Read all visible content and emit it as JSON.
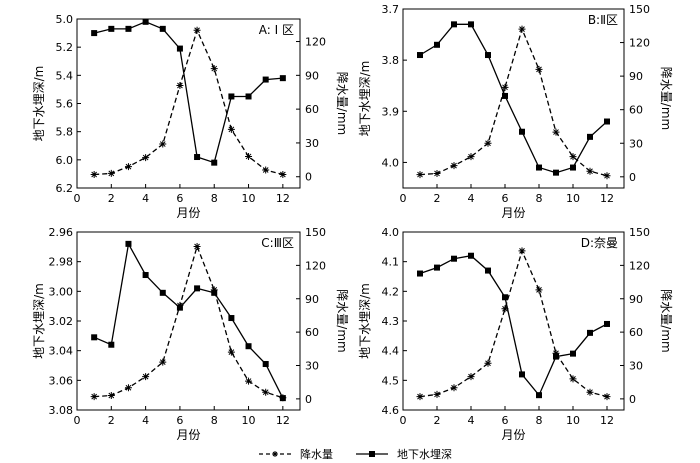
{
  "chart_data": [
    {
      "type": "line",
      "panel_label": "A: Ⅰ 区",
      "xlabel": "月份",
      "ylabel_left": "地下水埋深/m",
      "ylabel_right": "降水量/mm",
      "x": [
        1,
        2,
        3,
        4,
        5,
        6,
        7,
        8,
        9,
        10,
        11,
        12
      ],
      "x_ticks": [
        0,
        2,
        4,
        6,
        8,
        10,
        12
      ],
      "xlim": [
        0,
        13
      ],
      "left_axis": {
        "lim": [
          5.0,
          6.2
        ],
        "inverted": true,
        "ticks": [
          5.0,
          5.2,
          5.4,
          5.6,
          5.8,
          6.0,
          6.2
        ],
        "tick_labels": [
          "5.0",
          "5.2",
          "5.4",
          "5.6",
          "5.8",
          "6.0",
          "6.2"
        ]
      },
      "right_axis": {
        "lim": [
          -10,
          140
        ],
        "ticks": [
          0,
          30,
          60,
          90,
          120
        ],
        "tick_labels": [
          "0",
          "30",
          "60",
          "90",
          "120"
        ]
      },
      "series": [
        {
          "name": "降水量",
          "axis": "right",
          "style": "dashed",
          "marker": "star",
          "values": [
            2,
            3,
            9,
            17,
            29,
            81,
            130,
            96,
            42,
            18,
            6,
            2
          ]
        },
        {
          "name": "地下水埋深",
          "axis": "left",
          "style": "solid",
          "marker": "square",
          "values": [
            5.1,
            5.07,
            5.07,
            5.02,
            5.07,
            5.21,
            5.98,
            6.02,
            5.55,
            5.55,
            5.43,
            5.42
          ]
        }
      ]
    },
    {
      "type": "line",
      "panel_label": "B:Ⅱ区",
      "xlabel": "月份",
      "ylabel_left": "地下水埋深/m",
      "ylabel_right": "降水量/mm",
      "x": [
        1,
        2,
        3,
        4,
        5,
        6,
        7,
        8,
        9,
        10,
        11,
        12
      ],
      "x_ticks": [
        0,
        2,
        4,
        6,
        8,
        10,
        12
      ],
      "xlim": [
        0,
        13
      ],
      "left_axis": {
        "lim": [
          3.7,
          4.05
        ],
        "inverted": true,
        "ticks": [
          3.7,
          3.8,
          3.9,
          4.0
        ],
        "tick_labels": [
          "3.7",
          "3.8",
          "3.9",
          "4.0"
        ]
      },
      "right_axis": {
        "lim": [
          -10,
          150
        ],
        "ticks": [
          0,
          30,
          60,
          90,
          120,
          150
        ],
        "tick_labels": [
          "0",
          "30",
          "60",
          "90",
          "120",
          "150"
        ]
      },
      "series": [
        {
          "name": "降水量",
          "axis": "right",
          "style": "dashed",
          "marker": "star",
          "values": [
            2,
            3,
            10,
            18,
            30,
            80,
            132,
            96,
            40,
            18,
            5,
            1
          ]
        },
        {
          "name": "地下水埋深",
          "axis": "left",
          "style": "solid",
          "marker": "square",
          "values": [
            3.79,
            3.77,
            3.73,
            3.73,
            3.79,
            3.87,
            3.94,
            4.01,
            4.02,
            4.01,
            3.95,
            3.92
          ]
        }
      ]
    },
    {
      "type": "line",
      "panel_label": "C:Ⅲ区",
      "xlabel": "月份",
      "ylabel_left": "地下水埋深/m",
      "ylabel_right": "降水量/mm",
      "x": [
        1,
        2,
        3,
        4,
        5,
        6,
        7,
        8,
        9,
        10,
        11,
        12
      ],
      "x_ticks": [
        0,
        2,
        4,
        6,
        8,
        10,
        12
      ],
      "xlim": [
        0,
        13
      ],
      "left_axis": {
        "lim": [
          2.96,
          3.08
        ],
        "inverted": true,
        "ticks": [
          2.96,
          2.98,
          3.0,
          3.02,
          3.04,
          3.06,
          3.08
        ],
        "tick_labels": [
          "2.96",
          "2.98",
          "3.00",
          "3.02",
          "3.04",
          "3.06",
          "3.08"
        ]
      },
      "right_axis": {
        "lim": [
          -10,
          150
        ],
        "ticks": [
          0,
          30,
          60,
          90,
          120,
          150
        ],
        "tick_labels": [
          "0",
          "30",
          "60",
          "90",
          "120",
          "150"
        ]
      },
      "series": [
        {
          "name": "降水量",
          "axis": "right",
          "style": "dashed",
          "marker": "star",
          "values": [
            2,
            3,
            10,
            20,
            33,
            84,
            137,
            98,
            42,
            16,
            6,
            1
          ]
        },
        {
          "name": "地下水埋深",
          "axis": "left",
          "style": "solid",
          "marker": "square",
          "values": [
            3.031,
            3.036,
            2.968,
            2.989,
            3.001,
            3.011,
            2.998,
            3.001,
            3.018,
            3.037,
            3.049,
            3.072
          ]
        }
      ]
    },
    {
      "type": "line",
      "panel_label": "D:奈曼",
      "xlabel": "月份",
      "ylabel_left": "地下水埋深/m",
      "ylabel_right": "降水量/mm",
      "x": [
        1,
        2,
        3,
        4,
        5,
        6,
        7,
        8,
        9,
        10,
        11,
        12
      ],
      "x_ticks": [
        0,
        2,
        4,
        6,
        8,
        10,
        12
      ],
      "xlim": [
        0,
        13
      ],
      "left_axis": {
        "lim": [
          4.0,
          4.6
        ],
        "inverted": true,
        "ticks": [
          4.0,
          4.1,
          4.2,
          4.3,
          4.4,
          4.5,
          4.6
        ],
        "tick_labels": [
          "4.0",
          "4.1",
          "4.2",
          "4.3",
          "4.4",
          "4.5",
          "4.6"
        ]
      },
      "right_axis": {
        "lim": [
          -10,
          150
        ],
        "ticks": [
          0,
          30,
          60,
          90,
          120,
          150
        ],
        "tick_labels": [
          "0",
          "30",
          "60",
          "90",
          "120",
          "150"
        ]
      },
      "series": [
        {
          "name": "降水量",
          "axis": "right",
          "style": "dashed",
          "marker": "star",
          "values": [
            2,
            4,
            10,
            20,
            32,
            81,
            133,
            98,
            41,
            18,
            6,
            2
          ]
        },
        {
          "name": "地下水埋深",
          "axis": "left",
          "style": "solid",
          "marker": "square",
          "values": [
            4.14,
            4.12,
            4.09,
            4.08,
            4.13,
            4.22,
            4.48,
            4.55,
            4.42,
            4.41,
            4.34,
            4.31
          ]
        }
      ]
    }
  ],
  "legend": {
    "items": [
      {
        "label": "降水量",
        "style": "dashed",
        "marker": "star"
      },
      {
        "label": "地下水埋深",
        "style": "solid",
        "marker": "square"
      }
    ]
  }
}
